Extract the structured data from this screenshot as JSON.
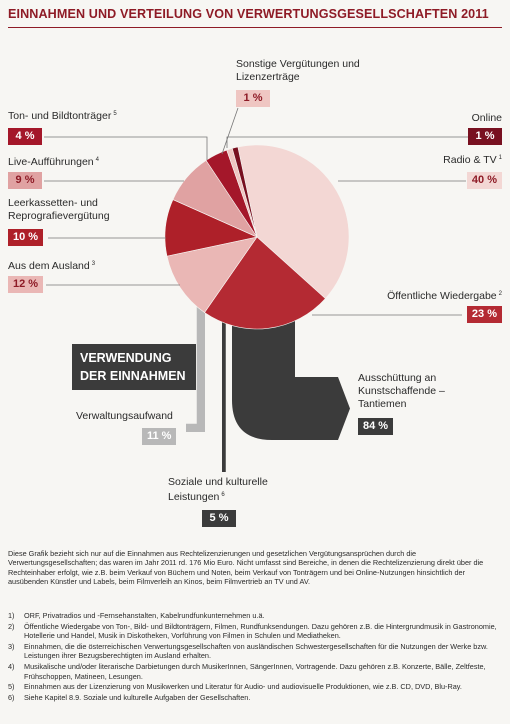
{
  "chart_data": {
    "type": "pie",
    "title": "EINNAHMEN UND VERTEILUNG VON VERWERTUNGSGESELLSCHAFTEN 2011",
    "categories": [
      "Radio & TV",
      "Öffentliche Wiedergabe",
      "Aus dem Ausland",
      "Leerkassetten- und Reprografievergütung",
      "Live-Aufführungen",
      "Ton- und Bildtonträger",
      "Sonstige Vergütungen und Lizenzerträge",
      "Online"
    ],
    "category_notes": [
      "1",
      "2",
      "3",
      null,
      "4",
      "5",
      null,
      null
    ],
    "values": [
      40,
      23,
      12,
      10,
      9,
      4,
      1,
      1
    ],
    "value_labels": [
      "40 %",
      "23 %",
      "12 %",
      "10 %",
      "9 %",
      "4 %",
      "1 %",
      "1 %"
    ],
    "colors": [
      "#f3d7d4",
      "#b42a33",
      "#eab7b5",
      "#ae2029",
      "#e0a2a2",
      "#a4172a",
      "#efc6c2",
      "#781020"
    ]
  },
  "usage": {
    "title": "VERWENDUNG DER EINNAHMEN",
    "items": [
      {
        "label": "Verwaltungsaufwand",
        "note": null,
        "value": 11,
        "value_label": "11 %",
        "color": "#b8b8b8"
      },
      {
        "label": "Ausschüttung an Kunstschaffende – Tantiemen",
        "note": null,
        "value": 84,
        "value_label": "84 %",
        "color": "#3b3b3b"
      },
      {
        "label": "Soziale und kulturelle Leistungen",
        "note": "6",
        "value": 5,
        "value_label": "5 %",
        "color": "#3b3b3b"
      }
    ]
  },
  "notes": {
    "text": "Diese Grafik bezieht sich nur auf die Einnahmen aus Rechtelizenzierungen und gesetzlichen Vergütungsansprüchen durch die Verwertungsgesellschaften; das waren im Jahr 2011 rd. 176 Mio Euro. Nicht umfasst sind Bereiche, in denen die Rechtelizenzierung direkt über die Rechteinhaber erfolgt, wie z.B. beim Verkauf von Büchern und Noten, beim Verkauf von Tonträgern und bei Online-Nutzungen hinsichtlich der ausübenden Künstler und Labels, beim Filmverleih an Kinos, beim Filmvertrieb an TV und AV.",
    "footnotes": [
      {
        "number": "1)",
        "text": "ORF, Privatradios und -Fernsehanstalten, Kabelrundfunkunternehmen u.ä."
      },
      {
        "number": "2)",
        "text": "Öffentliche Wiedergabe von Ton-, Bild- und Bildtonträgern, Filmen, Rundfunksendungen. Dazu gehören z.B. die Hintergrundmusik in Gastronomie, Hotellerie und Handel, Musik in Diskotheken, Vorführung von Filmen in Schulen und Mediatheken."
      },
      {
        "number": "3)",
        "text": "Einnahmen, die die österreichischen Verwertungsgesellschaften von ausländischen Schwestergesellschaften für die Nutzungen der Werke bzw. Leistungen ihrer Bezugsberechtigten im Ausland erhalten."
      },
      {
        "number": "4)",
        "text": "Musikalische und/oder literarische Darbietungen durch MusikerInnen, SängerInnen, Vortragende. Dazu gehören z.B. Konzerte, Bälle, Zeltfeste, Frühschoppen, Matineen, Lesungen."
      },
      {
        "number": "5)",
        "text": "Einnahmen aus der Lizenzierung von Musikwerken und Literatur für Audio- und audiovisuelle Produktionen, wie z.B. CD, DVD, Blu-Ray."
      },
      {
        "number": "6)",
        "text": "Siehe Kapitel 8.9. Soziale und kulturelle Aufgaben der Gesellschaften."
      }
    ]
  }
}
